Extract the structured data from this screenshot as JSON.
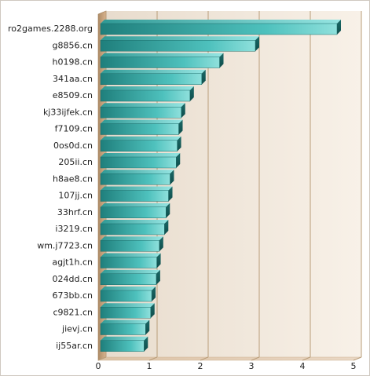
{
  "chart_data": {
    "type": "bar",
    "orientation": "horizontal",
    "categories": [
      "ro2games.2288.org",
      "g8856.cn",
      "h0198.cn",
      "341aa.cn",
      "e8509.cn",
      "kj33ijfek.cn",
      "f7109.cn",
      "0os0d.cn",
      "205ii.cn",
      "h8ae8.cn",
      "107jj.cn",
      "33hrf.cn",
      "i3219.cn",
      "wm.j7723.cn",
      "agjt1h.cn",
      "024dd.cn",
      "673bb.cn",
      "c9821.cn",
      "jievj.cn",
      "ij55ar.cn"
    ],
    "values": [
      4.6,
      3.0,
      2.3,
      1.95,
      1.72,
      1.55,
      1.5,
      1.47,
      1.45,
      1.33,
      1.3,
      1.25,
      1.22,
      1.12,
      1.07,
      1.06,
      0.97,
      0.95,
      0.85,
      0.82
    ],
    "xlim": [
      0,
      5
    ],
    "xticks": [
      "0",
      "1",
      "2",
      "3",
      "4",
      "5"
    ],
    "grid": true,
    "colors": {
      "bar_fill": "#2fa6a2",
      "bar_light": "#8fe0dc",
      "bar_dark": "#1d6f6d",
      "plot_bg_left": "#efe4d6",
      "plot_bg_right": "#f8f1e8",
      "wall_left": "#c89f77",
      "wall_floor": "#d7b28a",
      "grid": "#b99d7a"
    }
  }
}
